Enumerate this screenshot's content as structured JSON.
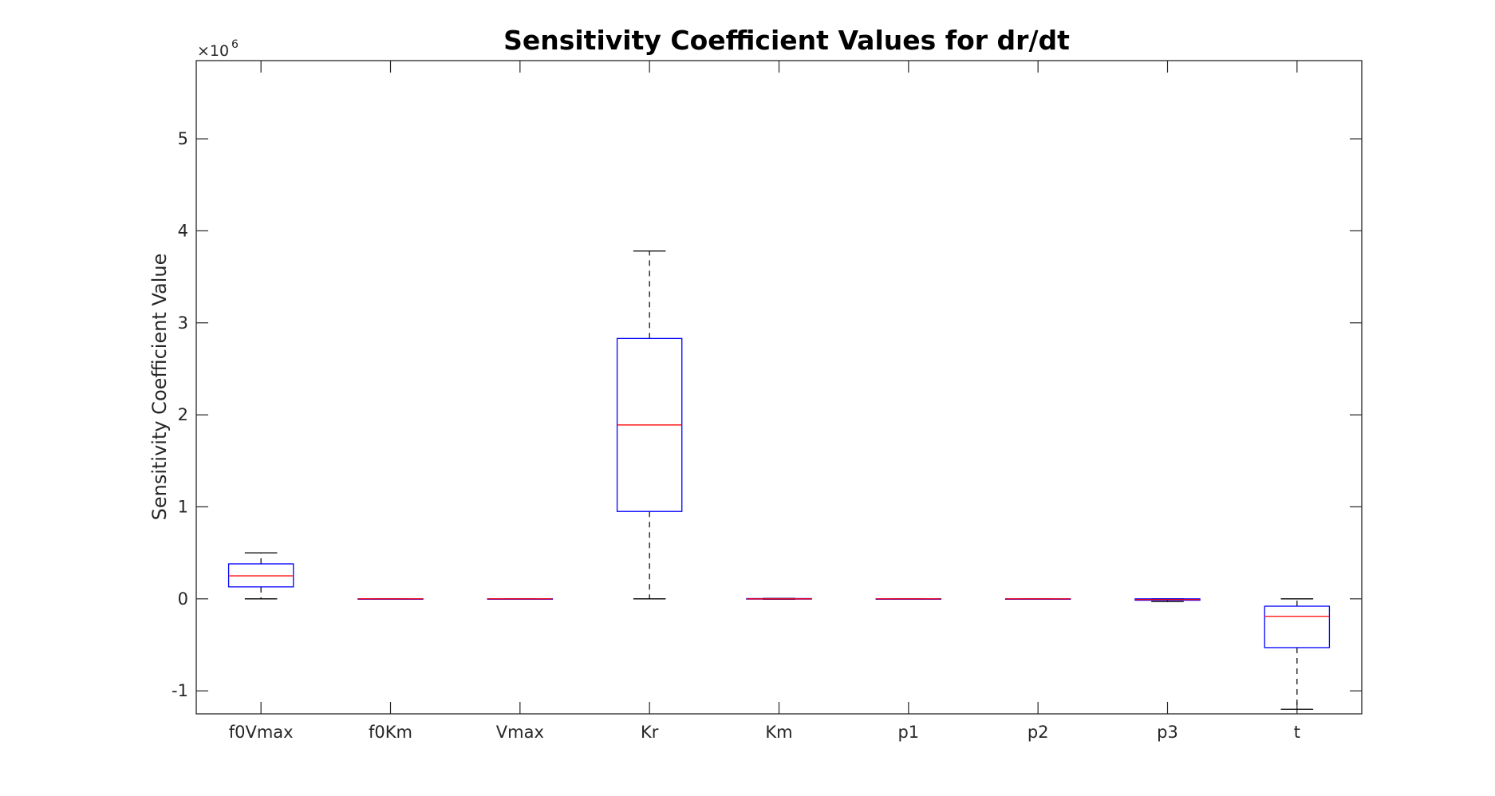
{
  "chart_data": {
    "type": "box",
    "title": "Sensitivity Coefficient Values for dr/dt",
    "xlabel": "",
    "ylabel": "Sensitivity Coefficient Value",
    "y_multiplier_base": "×10",
    "y_multiplier_exp": "6",
    "ylim": [
      -1.25,
      5.85
    ],
    "yticks": [
      -1,
      0,
      1,
      2,
      3,
      4,
      5
    ],
    "categories": [
      "f0Vmax",
      "f0Km",
      "Vmax",
      "Kr",
      "Km",
      "p1",
      "p2",
      "p3",
      "t"
    ],
    "units": "×10^6",
    "boxes": [
      {
        "name": "f0Vmax",
        "whisker_low": 0.0,
        "q1": 0.13,
        "median": 0.25,
        "q3": 0.38,
        "whisker_high": 0.5
      },
      {
        "name": "f0Km",
        "whisker_low": 0.0,
        "q1": 0.0,
        "median": 0.0,
        "q3": 0.0,
        "whisker_high": 0.0
      },
      {
        "name": "Vmax",
        "whisker_low": 0.0,
        "q1": 0.0,
        "median": 0.0,
        "q3": 0.0,
        "whisker_high": 0.0
      },
      {
        "name": "Kr",
        "whisker_low": 0.0,
        "q1": 0.95,
        "median": 1.89,
        "q3": 2.83,
        "whisker_high": 3.78
      },
      {
        "name": "Km",
        "whisker_low": -0.005,
        "q1": -0.003,
        "median": 0.0,
        "q3": 0.003,
        "whisker_high": 0.005
      },
      {
        "name": "p1",
        "whisker_low": 0.0,
        "q1": 0.0,
        "median": 0.0,
        "q3": 0.0,
        "whisker_high": 0.0
      },
      {
        "name": "p2",
        "whisker_low": 0.0,
        "q1": 0.0,
        "median": 0.0,
        "q3": 0.0,
        "whisker_high": 0.0
      },
      {
        "name": "p3",
        "whisker_low": -0.03,
        "q1": -0.015,
        "median": -0.008,
        "q3": 0.0,
        "whisker_high": 0.0
      },
      {
        "name": "t",
        "whisker_low": -1.2,
        "q1": -0.53,
        "median": -0.19,
        "q3": -0.08,
        "whisker_high": 0.0
      }
    ],
    "colors": {
      "box": "#0000ff",
      "median": "#ff0000",
      "whisker": "#000000",
      "axis": "#262626"
    },
    "grid": false,
    "legend": "none"
  }
}
